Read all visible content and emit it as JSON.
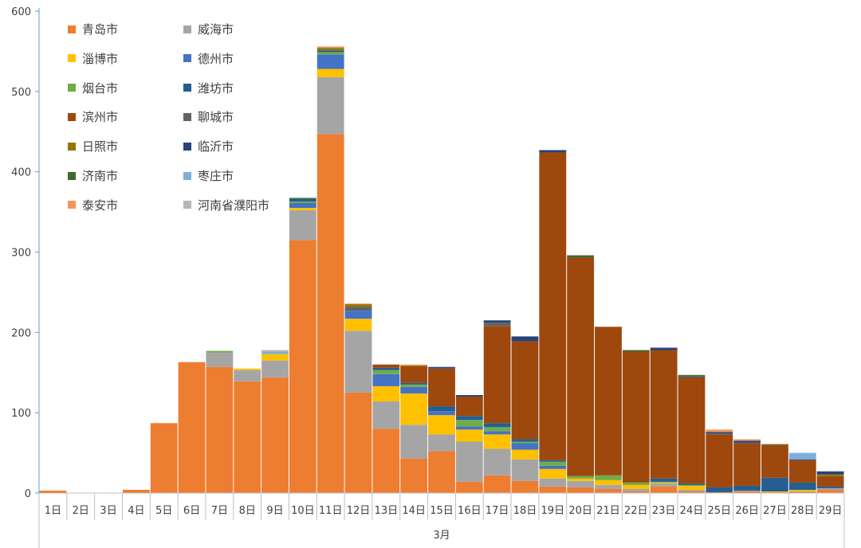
{
  "chart_data": {
    "type": "bar",
    "stacked": true,
    "title": "",
    "xlabel": "3月",
    "ylabel": "",
    "ylim": [
      0,
      600
    ],
    "yticks": [
      0,
      100,
      200,
      300,
      400,
      500,
      600
    ],
    "grid": false,
    "legend_position": "top-left",
    "categories": [
      "1日",
      "2日",
      "3日",
      "4日",
      "5日",
      "6日",
      "7日",
      "8日",
      "9日",
      "10日",
      "11日",
      "12日",
      "13日",
      "14日",
      "15日",
      "16日",
      "17日",
      "18日",
      "19日",
      "20日",
      "21日",
      "22日",
      "23日",
      "24日",
      "25日",
      "26日",
      "27日",
      "28日",
      "29日"
    ],
    "series": [
      {
        "name": "青岛市",
        "color": "#ED7D31",
        "values": [
          3,
          0,
          0,
          4,
          87,
          163,
          157,
          139,
          144,
          315,
          447,
          125,
          80,
          43,
          52,
          14,
          22,
          15,
          8,
          7,
          5,
          2,
          8,
          2,
          1,
          2,
          1,
          1,
          4
        ]
      },
      {
        "name": "威海市",
        "color": "#A5A5A5",
        "values": [
          0,
          0,
          0,
          0,
          0,
          0,
          18,
          14,
          21,
          37,
          71,
          77,
          34,
          42,
          21,
          50,
          33,
          27,
          10,
          8,
          5,
          3,
          4,
          2,
          0,
          1,
          0,
          1,
          2
        ]
      },
      {
        "name": "淄博市",
        "color": "#FFC000",
        "values": [
          0,
          0,
          0,
          0,
          0,
          0,
          0,
          2,
          8,
          3,
          10,
          15,
          19,
          39,
          24,
          15,
          18,
          12,
          12,
          3,
          6,
          5,
          1,
          5,
          0,
          0,
          1,
          2,
          0
        ]
      },
      {
        "name": "德州市",
        "color": "#4472C4",
        "values": [
          0,
          0,
          0,
          0,
          0,
          0,
          0,
          0,
          0,
          6,
          18,
          10,
          15,
          8,
          5,
          4,
          4,
          8,
          4,
          0,
          0,
          0,
          0,
          0,
          0,
          0,
          0,
          0,
          0
        ]
      },
      {
        "name": "烟台市",
        "color": "#70AD47",
        "values": [
          0,
          0,
          0,
          0,
          0,
          0,
          2,
          0,
          0,
          2,
          3,
          0,
          5,
          3,
          0,
          8,
          5,
          2,
          5,
          3,
          6,
          3,
          1,
          1,
          0,
          0,
          0,
          0,
          0
        ]
      },
      {
        "name": "潍坊市",
        "color": "#255E91",
        "values": [
          0,
          0,
          0,
          0,
          0,
          0,
          0,
          0,
          0,
          3,
          2,
          0,
          3,
          2,
          6,
          5,
          5,
          3,
          2,
          0,
          0,
          0,
          4,
          2,
          6,
          6,
          17,
          9,
          2
        ]
      },
      {
        "name": "滨州市",
        "color": "#9E480E",
        "values": [
          0,
          0,
          0,
          0,
          0,
          0,
          0,
          0,
          0,
          0,
          0,
          0,
          4,
          21,
          47,
          24,
          121,
          122,
          383,
          272,
          185,
          163,
          160,
          132,
          66,
          52,
          40,
          28,
          13
        ]
      },
      {
        "name": "聊城市",
        "color": "#636363",
        "values": [
          0,
          0,
          0,
          0,
          0,
          0,
          0,
          0,
          0,
          0,
          0,
          5,
          0,
          0,
          0,
          0,
          4,
          0,
          0,
          0,
          0,
          0,
          0,
          0,
          1,
          2,
          1,
          0,
          0
        ]
      },
      {
        "name": "日照市",
        "color": "#997300",
        "values": [
          0,
          0,
          0,
          0,
          0,
          0,
          0,
          0,
          0,
          0,
          2,
          3,
          0,
          1,
          0,
          0,
          0,
          0,
          0,
          0,
          0,
          0,
          0,
          0,
          0,
          0,
          1,
          0,
          2
        ]
      },
      {
        "name": "临沂市",
        "color": "#264478",
        "values": [
          0,
          0,
          0,
          0,
          0,
          0,
          0,
          0,
          0,
          0,
          0,
          0,
          0,
          0,
          2,
          2,
          3,
          6,
          3,
          0,
          0,
          0,
          3,
          1,
          2,
          2,
          0,
          1,
          4
        ]
      },
      {
        "name": "济南市",
        "color": "#43682B",
        "values": [
          0,
          0,
          0,
          0,
          0,
          0,
          0,
          0,
          0,
          1,
          1,
          0,
          0,
          0,
          0,
          0,
          0,
          0,
          0,
          3,
          0,
          2,
          0,
          2,
          0,
          0,
          0,
          0,
          0
        ]
      },
      {
        "name": "枣庄市",
        "color": "#7CAFDD",
        "values": [
          0,
          0,
          0,
          0,
          0,
          0,
          0,
          0,
          3,
          1,
          0,
          0,
          0,
          0,
          0,
          0,
          0,
          0,
          0,
          0,
          0,
          0,
          0,
          0,
          0,
          0,
          0,
          8,
          0
        ]
      },
      {
        "name": "泰安市",
        "color": "#F1975A",
        "values": [
          0,
          0,
          0,
          0,
          0,
          0,
          0,
          0,
          0,
          0,
          2,
          1,
          0,
          1,
          0,
          0,
          0,
          0,
          0,
          0,
          0,
          0,
          0,
          0,
          3,
          2,
          0,
          0,
          0
        ]
      },
      {
        "name": "河南省濮阳市",
        "color": "#B7B7B7",
        "values": [
          0,
          0,
          0,
          0,
          0,
          0,
          0,
          0,
          2,
          0,
          0,
          0,
          0,
          0,
          0,
          0,
          0,
          0,
          0,
          0,
          0,
          0,
          0,
          0,
          0,
          0,
          0,
          0,
          0
        ]
      }
    ]
  }
}
